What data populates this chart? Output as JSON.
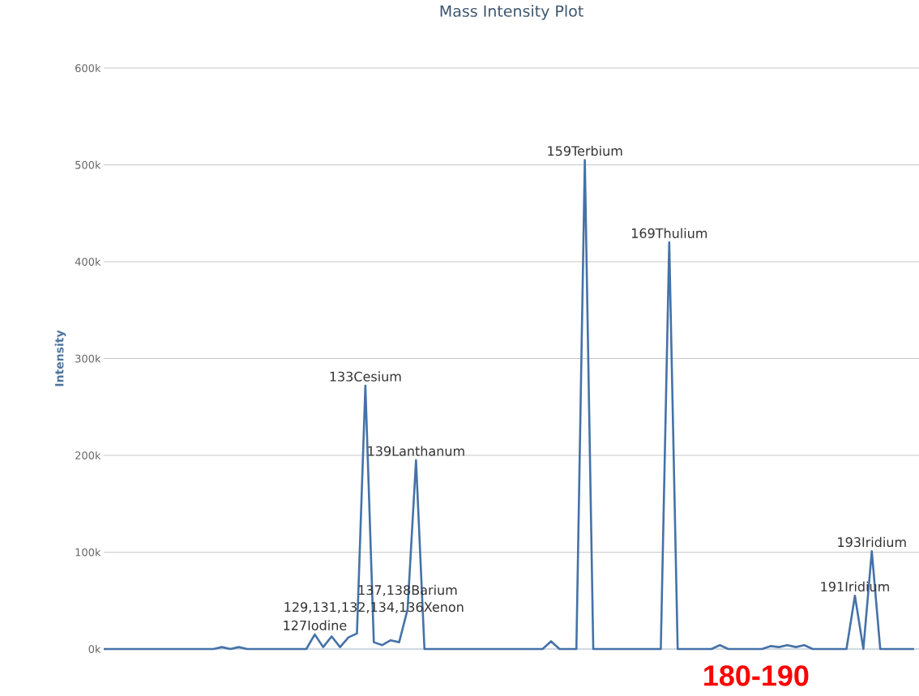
{
  "chart_data": {
    "type": "line",
    "title": "Mass Intensity Plot",
    "ylabel": "Intensity",
    "annotations": [
      {
        "text": "127Iodine",
        "y": 15000
      },
      {
        "text": "129,131,132,134,136Xenon",
        "y": 7000
      },
      {
        "text": "133Cesium",
        "y": 272000
      },
      {
        "text": "137,138Barium",
        "y": 41000
      },
      {
        "text": "139Lanthanum",
        "y": 195000
      },
      {
        "text": "159Terbium",
        "y": 505000
      },
      {
        "text": "169Thulium",
        "y": 420000
      },
      {
        "text": "191Iridium",
        "y": 55000
      },
      {
        "text": "193Iridium",
        "y": 101000
      },
      "180-190"
    ],
    "categories": [
      null,
      null,
      null,
      null,
      null,
      null,
      null,
      null,
      null,
      null,
      null,
      null,
      null,
      null,
      null,
      null,
      null,
      null,
      null,
      null,
      null,
      null,
      null,
      null,
      null,
      null,
      null,
      null,
      null,
      null,
      null,
      null,
      null,
      null,
      null,
      null,
      null,
      null,
      null,
      null,
      null,
      null,
      null,
      null,
      null,
      null,
      null,
      null,
      null,
      null,
      null,
      null,
      null,
      null,
      null,
      null,
      null,
      null,
      null,
      null,
      null,
      null,
      null,
      null,
      null,
      null,
      null,
      null,
      null,
      null,
      null,
      null,
      null,
      null,
      null,
      null,
      null,
      null,
      null,
      null,
      null,
      null,
      null,
      null,
      null,
      null,
      null,
      null,
      null,
      null,
      null,
      null,
      null,
      null,
      null,
      null,
      null
    ],
    "values": [
      0,
      0,
      0,
      0,
      0,
      0,
      0,
      0,
      0,
      0,
      0,
      0,
      0,
      0,
      2000,
      0,
      2000,
      0,
      0,
      0,
      0,
      0,
      0,
      0,
      0,
      15000,
      2000,
      13000,
      2000,
      12000,
      16000,
      272000,
      7000,
      4000,
      9000,
      7000,
      41000,
      195000,
      0,
      0,
      0,
      0,
      0,
      0,
      0,
      0,
      0,
      0,
      0,
      0,
      0,
      0,
      0,
      8000,
      0,
      0,
      0,
      505000,
      0,
      0,
      0,
      0,
      0,
      0,
      0,
      0,
      0,
      420000,
      0,
      0,
      0,
      0,
      0,
      4000,
      0,
      0,
      0,
      0,
      0,
      3000,
      2000,
      4000,
      2000,
      4000,
      0,
      0,
      0,
      0,
      0,
      55000,
      0,
      101000,
      0,
      0,
      0,
      0,
      0
    ],
    "color": "#4572a7",
    "ylim": [
      0,
      600000
    ],
    "yticks": [
      {
        "value": 0,
        "label": "0k"
      },
      {
        "value": 100000,
        "label": "100k"
      },
      {
        "value": 200000,
        "label": "200k"
      },
      {
        "value": 300000,
        "label": "300k"
      },
      {
        "value": 400000,
        "label": "400k"
      },
      {
        "value": 500000,
        "label": "500k"
      },
      {
        "value": 600000,
        "label": "600k"
      }
    ],
    "grid": "y",
    "tick_labels": "y"
  }
}
